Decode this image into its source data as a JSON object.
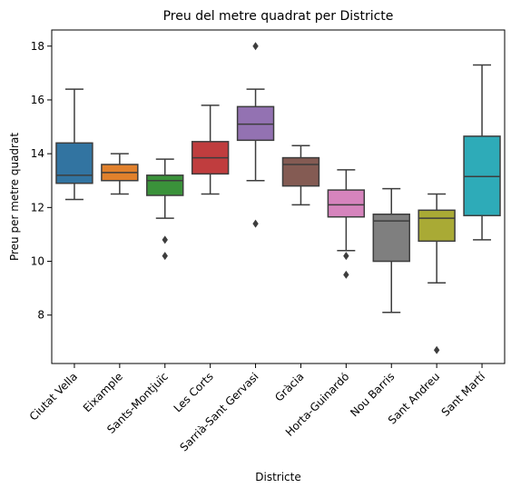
{
  "chart_data": {
    "type": "box",
    "title": "Preu del metre quadrat per Districte",
    "xlabel": "Districte",
    "ylabel": "Preu per metre quadrat",
    "ylim": [
      6.2,
      18.6
    ],
    "yticks": [
      8,
      10,
      12,
      14,
      16,
      18
    ],
    "grid": false,
    "categories": [
      {
        "name": "Ciutat Vella",
        "color": "#3274a1",
        "whisker_low": 12.3,
        "q1": 12.9,
        "median": 13.2,
        "q3": 14.4,
        "whisker_high": 16.4,
        "outliers": []
      },
      {
        "name": "Eixample",
        "color": "#e1812c",
        "whisker_low": 12.5,
        "q1": 13.0,
        "median": 13.3,
        "q3": 13.6,
        "whisker_high": 14.0,
        "outliers": []
      },
      {
        "name": "Sants-Montjuïc",
        "color": "#3a923a",
        "whisker_low": 11.6,
        "q1": 12.45,
        "median": 13.0,
        "q3": 13.2,
        "whisker_high": 13.8,
        "outliers": [
          10.8,
          10.2
        ]
      },
      {
        "name": "Les Corts",
        "color": "#c03d3e",
        "whisker_low": 12.5,
        "q1": 13.25,
        "median": 13.85,
        "q3": 14.45,
        "whisker_high": 15.8,
        "outliers": []
      },
      {
        "name": "Sarrià-Sant Gervasi",
        "color": "#9372b2",
        "whisker_low": 13.0,
        "q1": 14.5,
        "median": 15.1,
        "q3": 15.75,
        "whisker_high": 16.4,
        "outliers": [
          18.0,
          11.4
        ]
      },
      {
        "name": "Gràcia",
        "color": "#845b53",
        "whisker_low": 12.1,
        "q1": 12.8,
        "median": 13.6,
        "q3": 13.85,
        "whisker_high": 14.3,
        "outliers": []
      },
      {
        "name": "Horta-Guinardó",
        "color": "#d684bd",
        "whisker_low": 10.4,
        "q1": 11.65,
        "median": 12.1,
        "q3": 12.65,
        "whisker_high": 13.4,
        "outliers": [
          10.2,
          9.5
        ]
      },
      {
        "name": "Nou Barris",
        "color": "#7f7f7f",
        "whisker_low": 8.1,
        "q1": 10.0,
        "median": 11.5,
        "q3": 11.75,
        "whisker_high": 12.7,
        "outliers": []
      },
      {
        "name": "Sant Andreu",
        "color": "#a9aa35",
        "whisker_low": 9.2,
        "q1": 10.75,
        "median": 11.6,
        "q3": 11.9,
        "whisker_high": 12.5,
        "outliers": [
          6.7
        ]
      },
      {
        "name": "Sant Martí",
        "color": "#2eabb8",
        "whisker_low": 10.8,
        "q1": 11.7,
        "median": 13.15,
        "q3": 14.65,
        "whisker_high": 17.3,
        "outliers": []
      }
    ]
  }
}
